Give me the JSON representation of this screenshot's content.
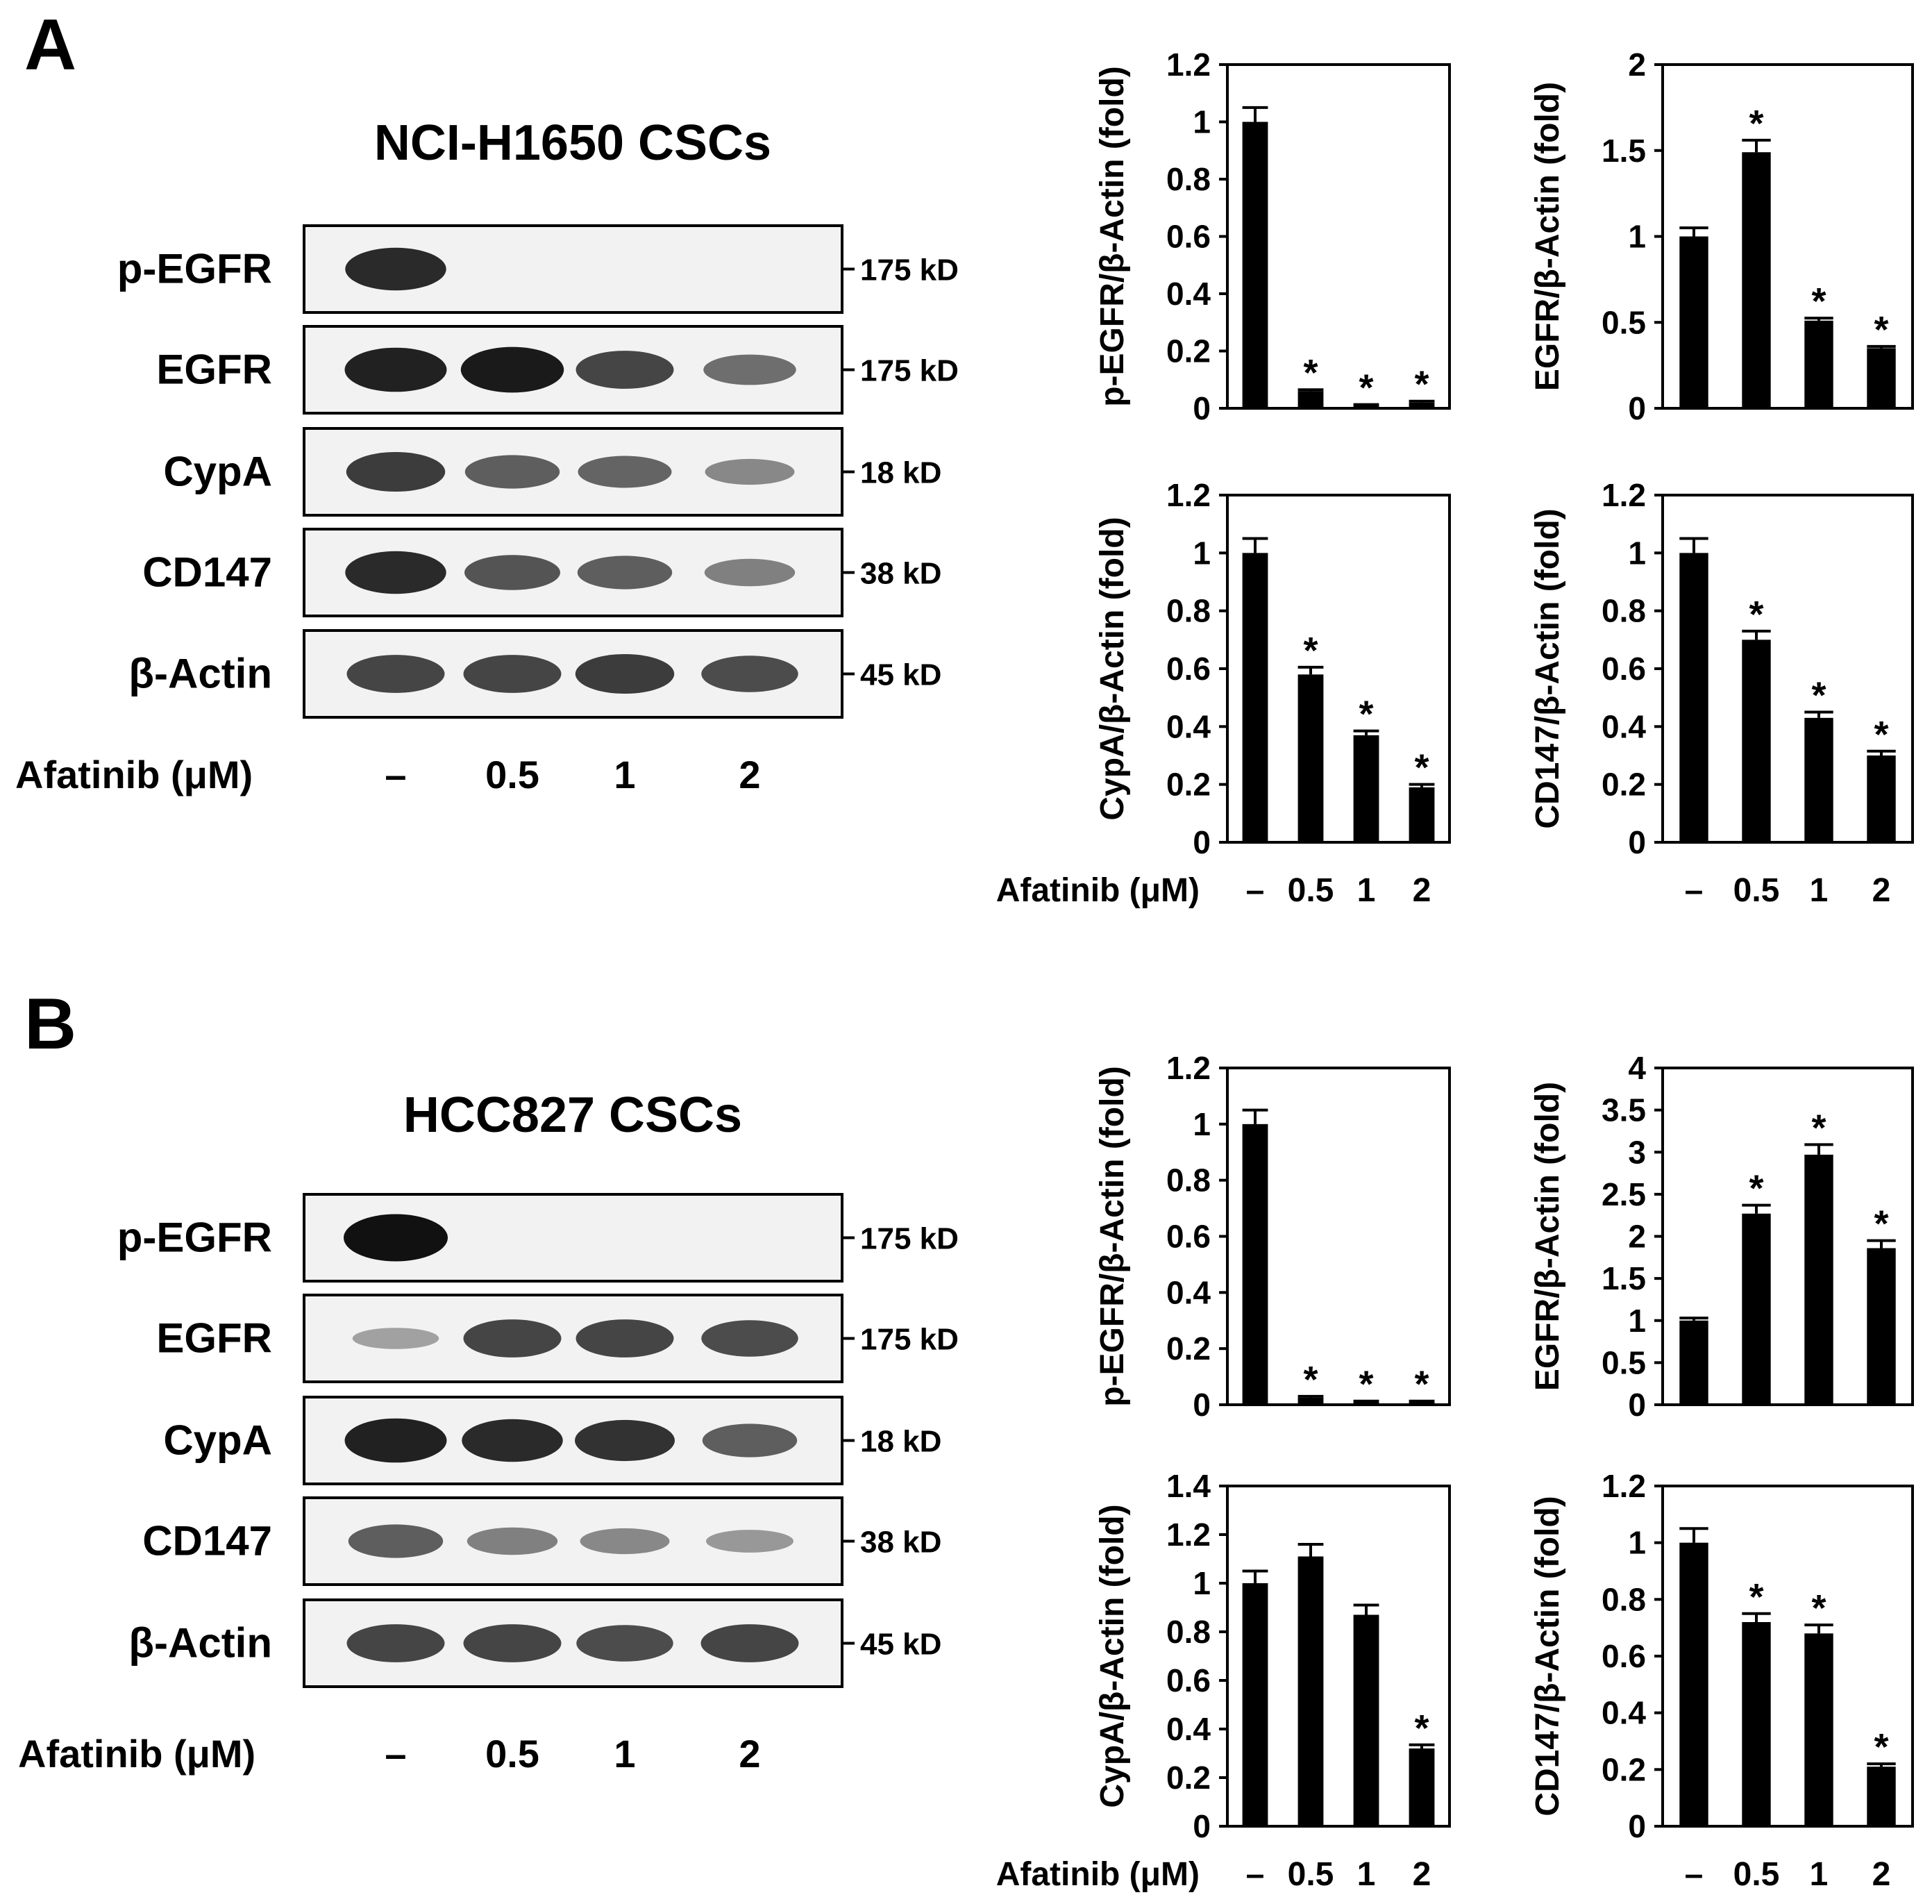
{
  "colors": {
    "bar": "#000000",
    "blot_bg": "#f2f2f2",
    "band": "#111111"
  },
  "panels": [
    {
      "letter": "A",
      "blot": {
        "title": "NCI-H1650 CSCs",
        "rows": [
          {
            "label": "p-EGFR",
            "kd": "175 kD",
            "lanes": [
              0.85,
              0.0,
              0.0,
              0.0
            ]
          },
          {
            "label": "EGFR",
            "kd": "175 kD",
            "lanes": [
              0.9,
              0.95,
              0.7,
              0.45
            ]
          },
          {
            "label": "CypA",
            "kd": "18 kD",
            "lanes": [
              0.75,
              0.55,
              0.5,
              0.3
            ]
          },
          {
            "label": "CD147",
            "kd": "38 kD",
            "lanes": [
              0.85,
              0.6,
              0.55,
              0.35
            ]
          },
          {
            "label": "β-Actin",
            "kd": "45 kD",
            "lanes": [
              0.7,
              0.7,
              0.75,
              0.65
            ]
          }
        ],
        "treatment_title": "Afatinib (μM)",
        "treatments": [
          "–",
          "0.5",
          "1",
          "2"
        ]
      }
    },
    {
      "letter": "B",
      "blot": {
        "title": "HCC827 CSCs",
        "rows": [
          {
            "label": "p-EGFR",
            "kd": "175 kD",
            "lanes": [
              1.0,
              0.0,
              0.0,
              0.0
            ]
          },
          {
            "label": "EGFR",
            "kd": "175 kD",
            "lanes": [
              0.15,
              0.7,
              0.7,
              0.65
            ]
          },
          {
            "label": "CypA",
            "kd": "18 kD",
            "lanes": [
              0.9,
              0.85,
              0.8,
              0.55
            ]
          },
          {
            "label": "CD147",
            "kd": "38 kD",
            "lanes": [
              0.55,
              0.35,
              0.3,
              0.2
            ]
          },
          {
            "label": "β-Actin",
            "kd": "45 kD",
            "lanes": [
              0.7,
              0.7,
              0.65,
              0.7
            ]
          }
        ],
        "treatment_title": "Afatinib (μM)",
        "treatments": [
          "–",
          "0.5",
          "1",
          "2"
        ]
      }
    }
  ],
  "chart_data": [
    {
      "type": "bar",
      "panel": "A",
      "ylabel": "p-EGFR/β-Actin (fold)",
      "categories": [
        "–",
        "0.5",
        "1",
        "2"
      ],
      "values": [
        1.0,
        0.06,
        0.01,
        0.02
      ],
      "errors": [
        0.05,
        0.005,
        0.003,
        0.005
      ],
      "significant": [
        false,
        true,
        true,
        true
      ],
      "significance_marker": "*",
      "ylim": [
        0,
        1.2
      ],
      "yticks": [
        "0",
        "0.2",
        "0.4",
        "0.6",
        "0.8",
        "1",
        "1.2"
      ],
      "xlabel": ""
    },
    {
      "type": "bar",
      "panel": "A",
      "ylabel": "EGFR/β-Actin (fold)",
      "categories": [
        "–",
        "0.5",
        "1",
        "2"
      ],
      "values": [
        1.0,
        1.49,
        0.51,
        0.35
      ],
      "errors": [
        0.05,
        0.07,
        0.015,
        0.01
      ],
      "significant": [
        false,
        true,
        true,
        true
      ],
      "significance_marker": "*",
      "ylim": [
        0,
        2
      ],
      "yticks": [
        "0",
        "0.5",
        "1",
        "1.5",
        "2"
      ],
      "xlabel": ""
    },
    {
      "type": "bar",
      "panel": "A",
      "ylabel": "CypA/β-Actin (fold)",
      "categories": [
        "–",
        "0.5",
        "1",
        "2"
      ],
      "values": [
        1.0,
        0.58,
        0.37,
        0.19
      ],
      "errors": [
        0.05,
        0.025,
        0.015,
        0.01
      ],
      "significant": [
        false,
        true,
        true,
        true
      ],
      "significance_marker": "*",
      "ylim": [
        0,
        1.2
      ],
      "yticks": [
        "0",
        "0.2",
        "0.4",
        "0.6",
        "0.8",
        "1",
        "1.2"
      ],
      "xlabel": "Afatinib (μM)"
    },
    {
      "type": "bar",
      "panel": "A",
      "ylabel": "CD147/β-Actin (fold)",
      "categories": [
        "–",
        "0.5",
        "1",
        "2"
      ],
      "values": [
        1.0,
        0.7,
        0.43,
        0.3
      ],
      "errors": [
        0.05,
        0.03,
        0.02,
        0.015
      ],
      "significant": [
        false,
        true,
        true,
        true
      ],
      "significance_marker": "*",
      "ylim": [
        0,
        1.2
      ],
      "yticks": [
        "0",
        "0.2",
        "0.4",
        "0.6",
        "0.8",
        "1",
        "1.2"
      ],
      "xlabel": ""
    },
    {
      "type": "bar",
      "panel": "B",
      "ylabel": "p-EGFR/β-Actin (fold)",
      "categories": [
        "–",
        "0.5",
        "1",
        "2"
      ],
      "values": [
        1.0,
        0.025,
        0.01,
        0.01
      ],
      "errors": [
        0.05,
        0.005,
        0.003,
        0.003
      ],
      "significant": [
        false,
        true,
        true,
        true
      ],
      "significance_marker": "*",
      "ylim": [
        0,
        1.2
      ],
      "yticks": [
        "0",
        "0.2",
        "0.4",
        "0.6",
        "0.8",
        "1",
        "1.2"
      ],
      "xlabel": ""
    },
    {
      "type": "bar",
      "panel": "B",
      "ylabel": "EGFR/β-Actin (fold)",
      "categories": [
        "–",
        "0.5",
        "1",
        "2"
      ],
      "values": [
        1.0,
        2.27,
        2.97,
        1.86
      ],
      "errors": [
        0.03,
        0.1,
        0.12,
        0.09
      ],
      "significant": [
        false,
        true,
        true,
        true
      ],
      "significance_marker": "*",
      "ylim": [
        0,
        4
      ],
      "yticks": [
        "0",
        "0.5",
        "1",
        "1.5",
        "2",
        "2.5",
        "3",
        "3.5",
        "4"
      ],
      "xlabel": ""
    },
    {
      "type": "bar",
      "panel": "B",
      "ylabel": "CypA/β-Actin (fold)",
      "categories": [
        "–",
        "0.5",
        "1",
        "2"
      ],
      "values": [
        1.0,
        1.11,
        0.87,
        0.32
      ],
      "errors": [
        0.05,
        0.05,
        0.04,
        0.015
      ],
      "significant": [
        false,
        false,
        false,
        true
      ],
      "significance_marker": "*",
      "ylim": [
        0,
        1.4
      ],
      "yticks": [
        "0",
        "0.2",
        "0.4",
        "0.6",
        "0.8",
        "1",
        "1.2",
        "1.4"
      ],
      "xlabel": "Afatinib (μM)"
    },
    {
      "type": "bar",
      "panel": "B",
      "ylabel": "CD147/β-Actin (fold)",
      "categories": [
        "–",
        "0.5",
        "1",
        "2"
      ],
      "values": [
        1.0,
        0.72,
        0.68,
        0.21
      ],
      "errors": [
        0.05,
        0.03,
        0.03,
        0.01
      ],
      "significant": [
        false,
        true,
        true,
        true
      ],
      "significance_marker": "*",
      "ylim": [
        0,
        1.2
      ],
      "yticks": [
        "0",
        "0.2",
        "0.4",
        "0.6",
        "0.8",
        "1",
        "1.2"
      ],
      "xlabel": ""
    }
  ]
}
